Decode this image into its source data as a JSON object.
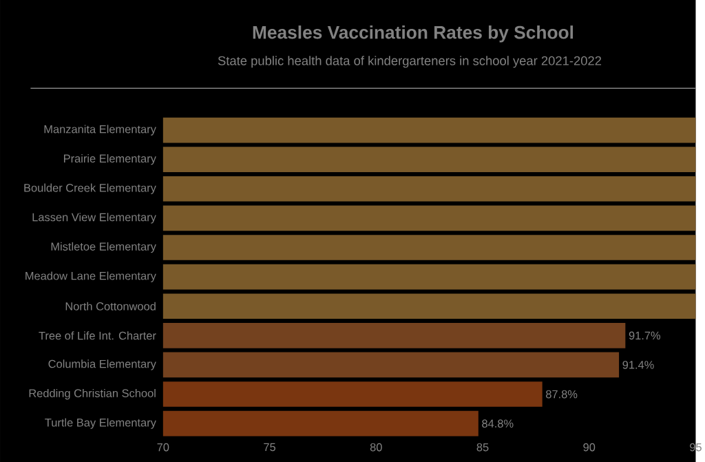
{
  "chart_data": {
    "type": "bar",
    "orientation": "horizontal",
    "title": "Measles Vaccination Rates by School",
    "subtitle": "State public health data of kindergarteners in school year 2021-2022",
    "categories": [
      "Manzanita Elementary",
      "Prairie Elementary",
      "Boulder Creek Elementary",
      "Lassen View Elementary",
      "Mistletoe Elementary",
      "Meadow Lane Elementary",
      "North Cottonwood",
      "Tree of Life Int. Charter",
      "Columbia Elementary",
      "Redding Christian School",
      "Turtle Bay Elementary"
    ],
    "values": [
      95,
      95,
      95,
      95,
      95,
      95,
      95,
      91.7,
      91.4,
      87.8,
      84.8
    ],
    "colors": [
      "#7a5a2a",
      "#7a5a2a",
      "#7a5a2a",
      "#7a5a2a",
      "#7a5a2a",
      "#7a5a2a",
      "#7a5a2a",
      "#74421f",
      "#74421f",
      "#7a3610",
      "#7a3610"
    ],
    "value_labels": [
      null,
      null,
      null,
      null,
      null,
      null,
      null,
      "91.7%",
      "91.4%",
      "87.8%",
      "84.8%"
    ],
    "xlim": [
      70,
      95
    ],
    "xticks": [
      70,
      75,
      80,
      85,
      90,
      95
    ]
  }
}
